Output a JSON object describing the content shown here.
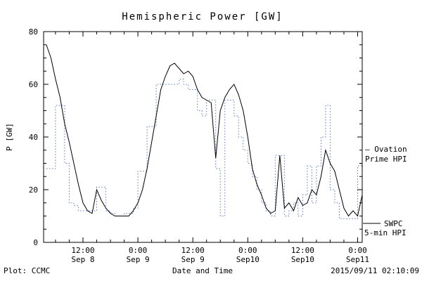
{
  "chart_data": {
    "type": "line",
    "title": "Hemispheric Power [GW]",
    "xlabel": "Date and Time",
    "ylabel": "P [GW]",
    "xlim": [
      3.4,
      73
    ],
    "ylim": [
      0,
      80
    ],
    "x_unit_note": "hours after Sep 8 2015 00:00 UT (read from tick labels)",
    "grid": false,
    "x_major_ticks": [
      {
        "value": 12,
        "time": "12:00",
        "date": "Sep 8"
      },
      {
        "value": 24,
        "time": "0:00",
        "date": "Sep 9"
      },
      {
        "value": 36,
        "time": "12:00",
        "date": "Sep 9"
      },
      {
        "value": 48,
        "time": "0:00",
        "date": "Sep10"
      },
      {
        "value": 60,
        "time": "12:00",
        "date": "Sep10"
      },
      {
        "value": 72,
        "time": "0:00",
        "date": "Sep11"
      }
    ],
    "x_minor_step": 3,
    "y_major_ticks": [
      0,
      20,
      40,
      60,
      80
    ],
    "y_minor_step": 5,
    "x": [
      4,
      5,
      6,
      7,
      8,
      9,
      10,
      11,
      12,
      13,
      14,
      15,
      16,
      17,
      18,
      19,
      20,
      21,
      22,
      23,
      24,
      25,
      26,
      27,
      28,
      29,
      30,
      31,
      32,
      33,
      34,
      35,
      36,
      37,
      38,
      39,
      40,
      41,
      42,
      43,
      44,
      45,
      46,
      47,
      48,
      49,
      50,
      51,
      52,
      53,
      54,
      55,
      56,
      57,
      58,
      59,
      60,
      61,
      62,
      63,
      64,
      65,
      66,
      67,
      68,
      69,
      70,
      71,
      72,
      73
    ],
    "series": [
      {
        "name": "Ovation Prime HPI",
        "color": "#5577cc",
        "style": "dotted",
        "step": true,
        "values": [
          28,
          28,
          52,
          52,
          30,
          15,
          14,
          12,
          12,
          12,
          12,
          21,
          21,
          12,
          11,
          10,
          10,
          11,
          11,
          13,
          27,
          27,
          44,
          44,
          60,
          60,
          60,
          60,
          60,
          62,
          60,
          58,
          58,
          50,
          48,
          54,
          54,
          28,
          10,
          54,
          54,
          48,
          40,
          35,
          30,
          25,
          20,
          15,
          12,
          10,
          33,
          33,
          10,
          12,
          15,
          10,
          18,
          29,
          15,
          29,
          40,
          52,
          20,
          15,
          9,
          9,
          9,
          9,
          29,
          29
        ]
      },
      {
        "name": "SWPC 5-min HPI",
        "color": "#000000",
        "style": "solid",
        "step": false,
        "values": [
          75,
          70,
          62,
          55,
          45,
          38,
          30,
          22,
          15,
          12,
          11,
          20,
          16,
          13,
          11,
          10,
          10,
          10,
          10,
          12,
          15,
          20,
          28,
          38,
          48,
          58,
          63,
          67,
          68,
          66,
          64,
          65,
          63,
          58,
          55,
          54,
          53,
          32,
          50,
          55,
          58,
          60,
          56,
          50,
          40,
          28,
          22,
          18,
          13,
          11,
          12,
          33,
          13,
          15,
          12,
          17,
          14,
          15,
          20,
          18,
          25,
          35,
          30,
          27,
          20,
          13,
          10,
          12,
          10,
          18
        ]
      }
    ],
    "legend_position": "right-outside"
  },
  "legend": {
    "ovation_l1": "– Ovation",
    "ovation_l2": "Prime HPI",
    "swpc_l1": "SWPC",
    "swpc_l2": "5-min HPI"
  },
  "footer": {
    "left": "Plot: CCMC",
    "timestamp": "2015/09/11 02:10:09"
  }
}
